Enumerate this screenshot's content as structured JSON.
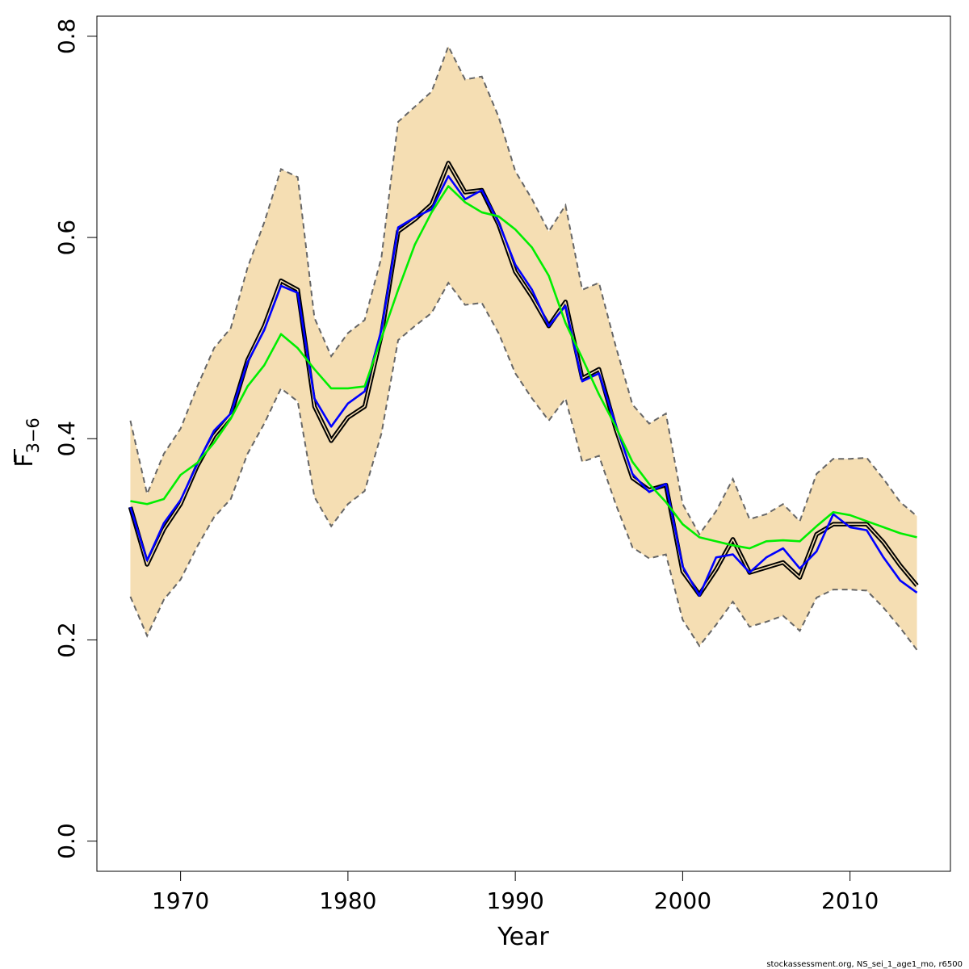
{
  "chart_data": {
    "type": "line",
    "title": "",
    "xlabel": "Year",
    "ylabel_main": "F",
    "ylabel_sub": "3−6",
    "xlim": [
      1965,
      2016
    ],
    "ylim": [
      -0.03,
      0.82
    ],
    "x_ticks": [
      1970,
      1980,
      1990,
      2000,
      2010
    ],
    "x_tick_labels": [
      "1970",
      "1980",
      "1990",
      "2000",
      "2010"
    ],
    "y_ticks": [
      0.0,
      0.2,
      0.4,
      0.6,
      0.8
    ],
    "y_tick_labels": [
      "0.0",
      "0.2",
      "0.4",
      "0.6",
      "0.8"
    ],
    "years": [
      1967,
      1968,
      1969,
      1970,
      1971,
      1972,
      1973,
      1974,
      1975,
      1976,
      1977,
      1978,
      1979,
      1980,
      1981,
      1982,
      1983,
      1984,
      1985,
      1986,
      1987,
      1988,
      1989,
      1990,
      1991,
      1992,
      1993,
      1994,
      1995,
      1996,
      1997,
      1998,
      1999,
      2000,
      2001,
      2002,
      2003,
      2004,
      2005,
      2006,
      2007,
      2008,
      2009,
      2010,
      2011,
      2012,
      2013,
      2014
    ],
    "band": {
      "color": "#f5deb3",
      "border_color": "#666666",
      "upper": [
        0.418,
        0.345,
        0.385,
        0.41,
        0.452,
        0.49,
        0.51,
        0.57,
        0.615,
        0.668,
        0.66,
        0.52,
        0.482,
        0.505,
        0.518,
        0.58,
        0.715,
        0.73,
        0.745,
        0.79,
        0.757,
        0.76,
        0.72,
        0.666,
        0.638,
        0.606,
        0.632,
        0.548,
        0.555,
        0.492,
        0.434,
        0.415,
        0.425,
        0.335,
        0.305,
        0.328,
        0.36,
        0.32,
        0.325,
        0.335,
        0.318,
        0.365,
        0.38,
        0.38,
        0.381,
        0.36,
        0.337,
        0.323
      ],
      "lower": [
        0.243,
        0.204,
        0.24,
        0.26,
        0.293,
        0.322,
        0.34,
        0.385,
        0.415,
        0.45,
        0.437,
        0.342,
        0.313,
        0.335,
        0.348,
        0.405,
        0.498,
        0.512,
        0.525,
        0.555,
        0.533,
        0.535,
        0.505,
        0.465,
        0.44,
        0.418,
        0.44,
        0.377,
        0.383,
        0.335,
        0.292,
        0.281,
        0.285,
        0.22,
        0.194,
        0.215,
        0.238,
        0.213,
        0.218,
        0.224,
        0.209,
        0.242,
        0.25,
        0.25,
        0.249,
        0.232,
        0.212,
        0.19
      ]
    },
    "series": [
      {
        "color": "#000000",
        "width": 5.5,
        "values": [
          0.332,
          0.275,
          0.31,
          0.335,
          0.373,
          0.403,
          0.423,
          0.478,
          0.512,
          0.557,
          0.548,
          0.432,
          0.398,
          0.421,
          0.432,
          0.503,
          0.606,
          0.618,
          0.633,
          0.674,
          0.645,
          0.647,
          0.613,
          0.566,
          0.541,
          0.512,
          0.536,
          0.46,
          0.469,
          0.41,
          0.361,
          0.349,
          0.354,
          0.268,
          0.245,
          0.27,
          0.3,
          0.267,
          0.272,
          0.277,
          0.262,
          0.305,
          0.315,
          0.315,
          0.315,
          0.297,
          0.274,
          0.254
        ]
      },
      {
        "color": "#f5deb3",
        "width": 1.5,
        "values": [
          0.332,
          0.275,
          0.31,
          0.335,
          0.373,
          0.403,
          0.423,
          0.478,
          0.512,
          0.557,
          0.548,
          0.432,
          0.398,
          0.421,
          0.432,
          0.503,
          0.606,
          0.618,
          0.633,
          0.674,
          0.645,
          0.647,
          0.613,
          0.566,
          0.541,
          0.512,
          0.536,
          0.46,
          0.469,
          0.41,
          0.361,
          0.349,
          0.354,
          0.268,
          0.245,
          0.27,
          0.3,
          0.267,
          0.272,
          0.277,
          0.262,
          0.305,
          0.315,
          0.315,
          0.315,
          0.297,
          0.274,
          0.254
        ]
      },
      {
        "color": "#0000ff",
        "width": 2.6,
        "values": [
          0.332,
          0.279,
          0.316,
          0.339,
          0.375,
          0.408,
          0.425,
          0.476,
          0.508,
          0.552,
          0.545,
          0.44,
          0.412,
          0.435,
          0.447,
          0.508,
          0.61,
          0.62,
          0.628,
          0.661,
          0.638,
          0.647,
          0.615,
          0.573,
          0.548,
          0.512,
          0.532,
          0.457,
          0.465,
          0.414,
          0.365,
          0.347,
          0.355,
          0.273,
          0.244,
          0.282,
          0.285,
          0.267,
          0.282,
          0.291,
          0.271,
          0.288,
          0.325,
          0.312,
          0.309,
          0.282,
          0.259,
          0.247
        ]
      },
      {
        "color": "#00ee00",
        "width": 2.6,
        "values": [
          0.338,
          0.335,
          0.34,
          0.364,
          0.376,
          0.396,
          0.42,
          0.452,
          0.473,
          0.504,
          0.49,
          0.469,
          0.45,
          0.45,
          0.452,
          0.5,
          0.548,
          0.593,
          0.625,
          0.651,
          0.635,
          0.625,
          0.621,
          0.608,
          0.59,
          0.562,
          0.515,
          0.48,
          0.444,
          0.412,
          0.377,
          0.355,
          0.337,
          0.315,
          0.302,
          0.298,
          0.294,
          0.291,
          0.298,
          0.299,
          0.298,
          0.313,
          0.327,
          0.324,
          0.318,
          0.312,
          0.306,
          0.302
        ]
      }
    ]
  },
  "footer": {
    "text": "stockassessment.org, NS_sei_1_age1_mo, r6500"
  }
}
